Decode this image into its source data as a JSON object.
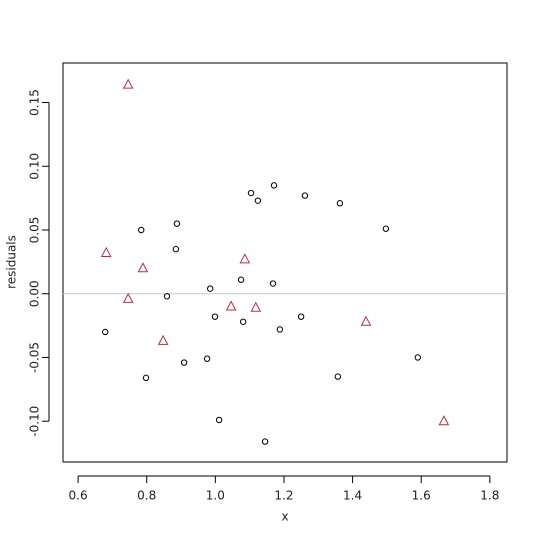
{
  "chart_data": {
    "type": "scatter",
    "x_label": "x",
    "y_label": "residuals",
    "xlim": [
      0.556,
      1.85
    ],
    "ylim": [
      -0.132,
      0.181
    ],
    "xticks": [
      0.6,
      0.8,
      {
        "value": 1.0,
        "label": "1.0"
      },
      1.2,
      1.4,
      1.6,
      1.8
    ],
    "yticks": [
      0.15,
      {
        "value": 0.1,
        "label": "0.10"
      },
      0.05,
      {
        "value": 0,
        "label": "0.00"
      },
      -0.05,
      {
        "value": -0.1,
        "label": "-0.10"
      }
    ],
    "hline": 0,
    "hline_color": "#c8c8c8",
    "series": [
      {
        "marker": "circle",
        "color": "#000000",
        "x": [
          0.679,
          0.784,
          0.798,
          0.859,
          0.888,
          0.885,
          0.909,
          0.976,
          0.985,
          0.999,
          1.011,
          1.075,
          1.081,
          1.104,
          1.124,
          1.145,
          1.171,
          1.168,
          1.188,
          1.25,
          1.261,
          1.357,
          1.363,
          1.497,
          1.59
        ],
        "values": [
          -0.03,
          0.05,
          -0.066,
          -0.002,
          0.055,
          0.035,
          -0.054,
          -0.051,
          0.004,
          -0.018,
          -0.099,
          0.011,
          -0.022,
          0.079,
          0.073,
          -0.116,
          0.085,
          0.008,
          -0.028,
          -0.018,
          0.077,
          -0.065,
          0.071,
          0.051,
          -0.05
        ]
      },
      {
        "marker": "triangle",
        "color": "#b5303c",
        "x": [
          0.746,
          0.682,
          0.789,
          0.746,
          0.848,
          1.086,
          1.046,
          1.118,
          1.439,
          1.666
        ],
        "values": [
          0.164,
          0.032,
          0.02,
          -0.004,
          -0.037,
          0.027,
          -0.01,
          -0.011,
          -0.022,
          -0.1
        ]
      }
    ]
  }
}
